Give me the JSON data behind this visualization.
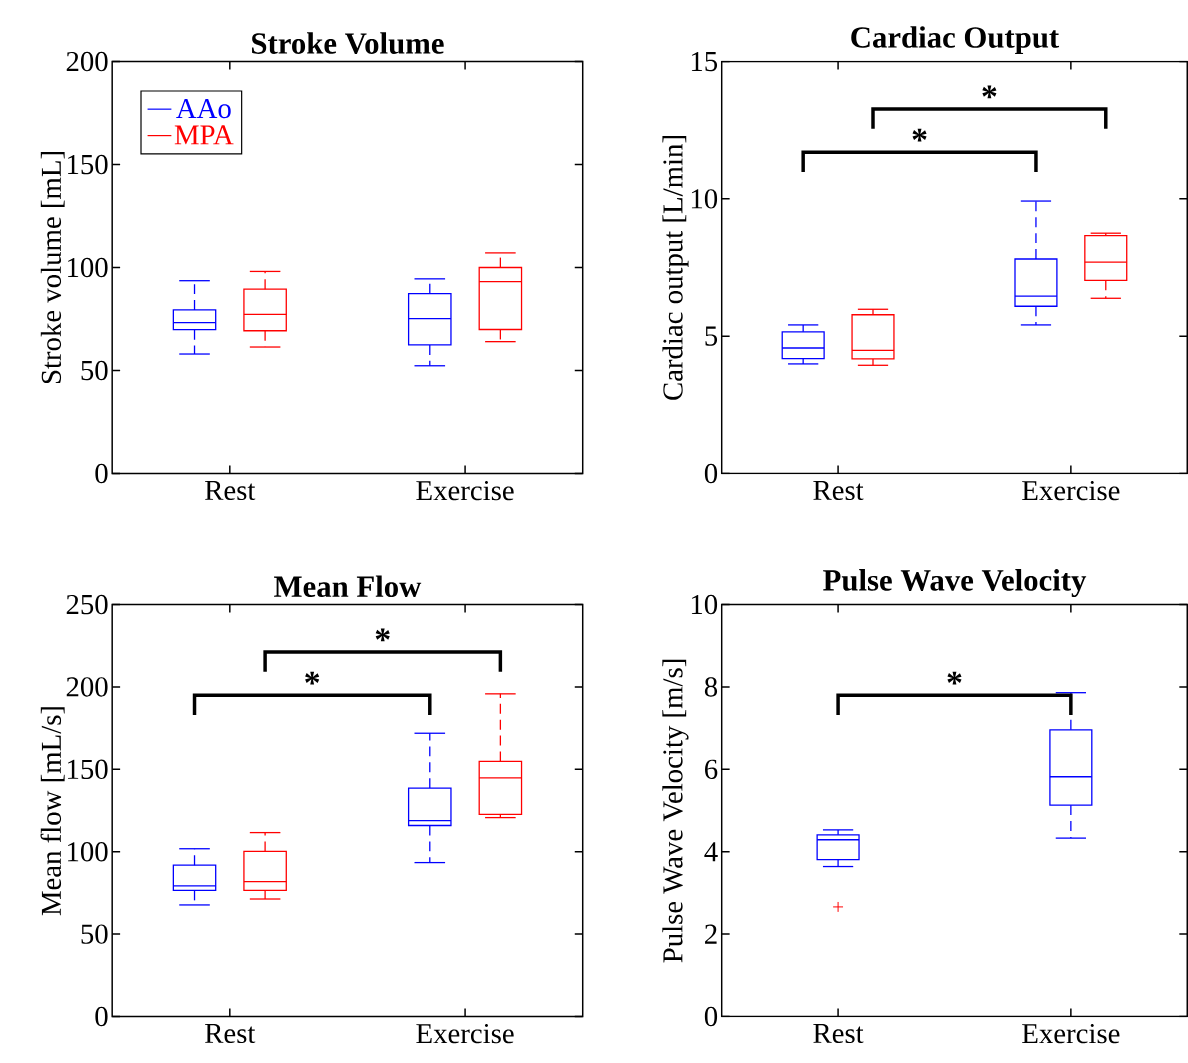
{
  "chart_data": [
    {
      "type": "box",
      "title": "Stroke Volume",
      "ylabel": "Stroke volume [mL]",
      "categories": [
        "Rest",
        "Exercise"
      ],
      "ylim": [
        0,
        200
      ],
      "yticks": [
        0,
        50,
        100,
        150,
        200
      ],
      "legend": "top left",
      "series": [
        {
          "name": "AAo",
          "color": "#0000ff",
          "boxes": [
            {
              "low": 58,
              "q1": 69.8,
              "median": 73.2,
              "q3": 79.4,
              "high": 93.6
            },
            {
              "low": 52.3,
              "q1": 62.4,
              "median": 75.2,
              "q3": 87.3,
              "high": 94.5
            }
          ]
        },
        {
          "name": "MPA",
          "color": "#ff0000",
          "boxes": [
            {
              "low": 61.4,
              "q1": 69.3,
              "median": 77.3,
              "q3": 89.5,
              "high": 98.1
            },
            {
              "low": 64,
              "q1": 69.9,
              "median": 93.2,
              "q3": 100,
              "high": 107.1
            }
          ]
        }
      ]
    },
    {
      "type": "box",
      "title": "Cardiac Output",
      "ylabel": "Cardiac output [L/min]",
      "categories": [
        "Rest",
        "Exercise"
      ],
      "ylim": [
        0,
        15
      ],
      "yticks": [
        0,
        5,
        10,
        15
      ],
      "annotations": [
        "*",
        "*"
      ],
      "series": [
        {
          "color": "#0000ff",
          "boxes": [
            {
              "low": 3.99,
              "q1": 4.18,
              "median": 4.57,
              "q3": 5.16,
              "high": 5.41
            },
            {
              "low": 5.41,
              "q1": 6.09,
              "median": 6.46,
              "q3": 7.81,
              "high": 9.92
            }
          ]
        },
        {
          "color": "#ff0000",
          "boxes": [
            {
              "low": 3.94,
              "q1": 4.17,
              "median": 4.48,
              "q3": 5.78,
              "high": 5.98
            },
            {
              "low": 6.38,
              "q1": 7.03,
              "median": 7.7,
              "q3": 8.66,
              "high": 8.75
            }
          ]
        }
      ]
    },
    {
      "type": "box",
      "title": "Mean Flow",
      "ylabel": "Mean flow [mL/s]",
      "categories": [
        "Rest",
        "Exercise"
      ],
      "ylim": [
        0,
        250
      ],
      "yticks": [
        0,
        50,
        100,
        150,
        200,
        250
      ],
      "annotations": [
        "*",
        "*"
      ],
      "series": [
        {
          "color": "#0000ff",
          "boxes": [
            {
              "low": 67.7,
              "q1": 76.5,
              "median": 79.3,
              "q3": 91.8,
              "high": 101.8
            },
            {
              "low": 93.4,
              "q1": 115.9,
              "median": 118.9,
              "q3": 138.6,
              "high": 171.9
            }
          ]
        },
        {
          "color": "#ff0000",
          "boxes": [
            {
              "low": 71.3,
              "q1": 76.5,
              "median": 81.9,
              "q3": 100.2,
              "high": 111.6
            },
            {
              "low": 120.7,
              "q1": 122.7,
              "median": 144.8,
              "q3": 154.8,
              "high": 195.8
            }
          ]
        }
      ]
    },
    {
      "type": "box",
      "title": "Pulse Wave Velocity",
      "ylabel": "Pulse Wave Velocity [m/s]",
      "categories": [
        "Rest",
        "Exercise"
      ],
      "ylim": [
        0,
        10
      ],
      "yticks": [
        0,
        2,
        4,
        6,
        8,
        10
      ],
      "annotations": [
        "*"
      ],
      "series": [
        {
          "color": "#0000ff",
          "boxes": [
            {
              "low": 3.64,
              "q1": 3.81,
              "median": 4.29,
              "q3": 4.41,
              "high": 4.53,
              "outliers": [
                2.66
              ]
            },
            {
              "low": 4.33,
              "q1": 5.13,
              "median": 5.82,
              "q3": 6.96,
              "high": 7.86
            }
          ]
        }
      ]
    }
  ]
}
